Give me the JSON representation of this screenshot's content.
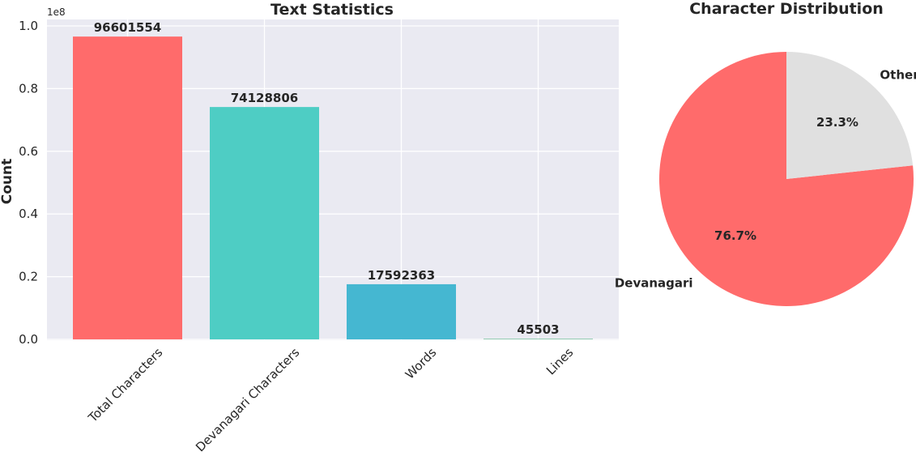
{
  "chart_data": [
    {
      "type": "bar",
      "title": "Text Statistics",
      "ylabel": "Count",
      "xlabel": "",
      "scale_label": "1e8",
      "categories": [
        "Total Characters",
        "Devanagari Characters",
        "Words",
        "Lines"
      ],
      "values": [
        96601554,
        74128806,
        17592363,
        45503
      ],
      "value_labels": [
        "96601554",
        "74128806",
        "17592363",
        "45503"
      ],
      "colors": [
        "#ff6b6b",
        "#4ecdc4",
        "#45b7d1",
        "#96ceb4"
      ],
      "ylim": [
        0,
        100000000
      ],
      "yticks": [
        0,
        20000000,
        40000000,
        60000000,
        80000000,
        100000000
      ],
      "ytick_labels": [
        "0.0",
        "0.2",
        "0.4",
        "0.6",
        "0.8",
        "1.0"
      ],
      "grid": true
    },
    {
      "type": "pie",
      "title": "Character Distribution",
      "labels": [
        "Devanagari",
        "Other"
      ],
      "values": [
        76.7,
        23.3
      ],
      "pct_labels": [
        "76.7%",
        "23.3%"
      ],
      "colors": [
        "#ff6b6b",
        "#e0e0e0"
      ]
    }
  ]
}
